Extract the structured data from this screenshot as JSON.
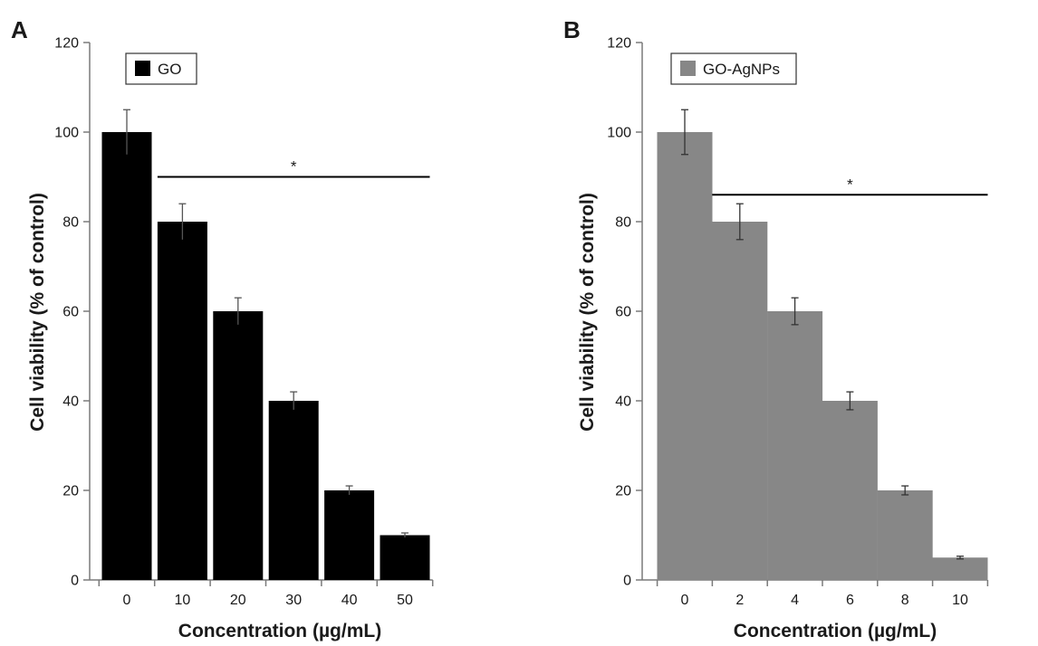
{
  "chart_data": [
    {
      "panel": "A",
      "type": "bar",
      "categories": [
        "0",
        "10",
        "20",
        "30",
        "40",
        "50"
      ],
      "series": [
        {
          "name": "GO",
          "values": [
            100,
            80,
            60,
            40,
            20,
            10
          ],
          "errors": [
            5,
            4,
            3,
            2,
            1,
            0.5
          ],
          "color": "#000000"
        }
      ],
      "xlabel": "Concentration (µg/mL)",
      "ylabel": "Cell viability (% of control)",
      "ylim": [
        0,
        120
      ],
      "yticks": [
        "0",
        "20",
        "40",
        "60",
        "80",
        "100",
        "120"
      ],
      "grid": false,
      "legend_position": "top-left",
      "significance": {
        "label": "*",
        "from_category": 1,
        "to_category": 5,
        "y": 90
      }
    },
    {
      "panel": "B",
      "type": "bar",
      "categories": [
        "0",
        "2",
        "4",
        "6",
        "8",
        "10"
      ],
      "series": [
        {
          "name": "GO-AgNPs",
          "values": [
            100,
            80,
            60,
            40,
            20,
            5
          ],
          "errors": [
            5,
            4,
            3,
            2,
            1,
            0.3
          ],
          "color": "#878787"
        }
      ],
      "xlabel": "Concentration (µg/mL)",
      "ylabel": "Cell viability (% of control)",
      "ylim": [
        0,
        120
      ],
      "yticks": [
        "0",
        "20",
        "40",
        "60",
        "80",
        "100",
        "120"
      ],
      "grid": false,
      "legend_position": "top-left",
      "significance": {
        "label": "*",
        "from_category": 1,
        "to_category": 5,
        "y": 86
      }
    }
  ]
}
